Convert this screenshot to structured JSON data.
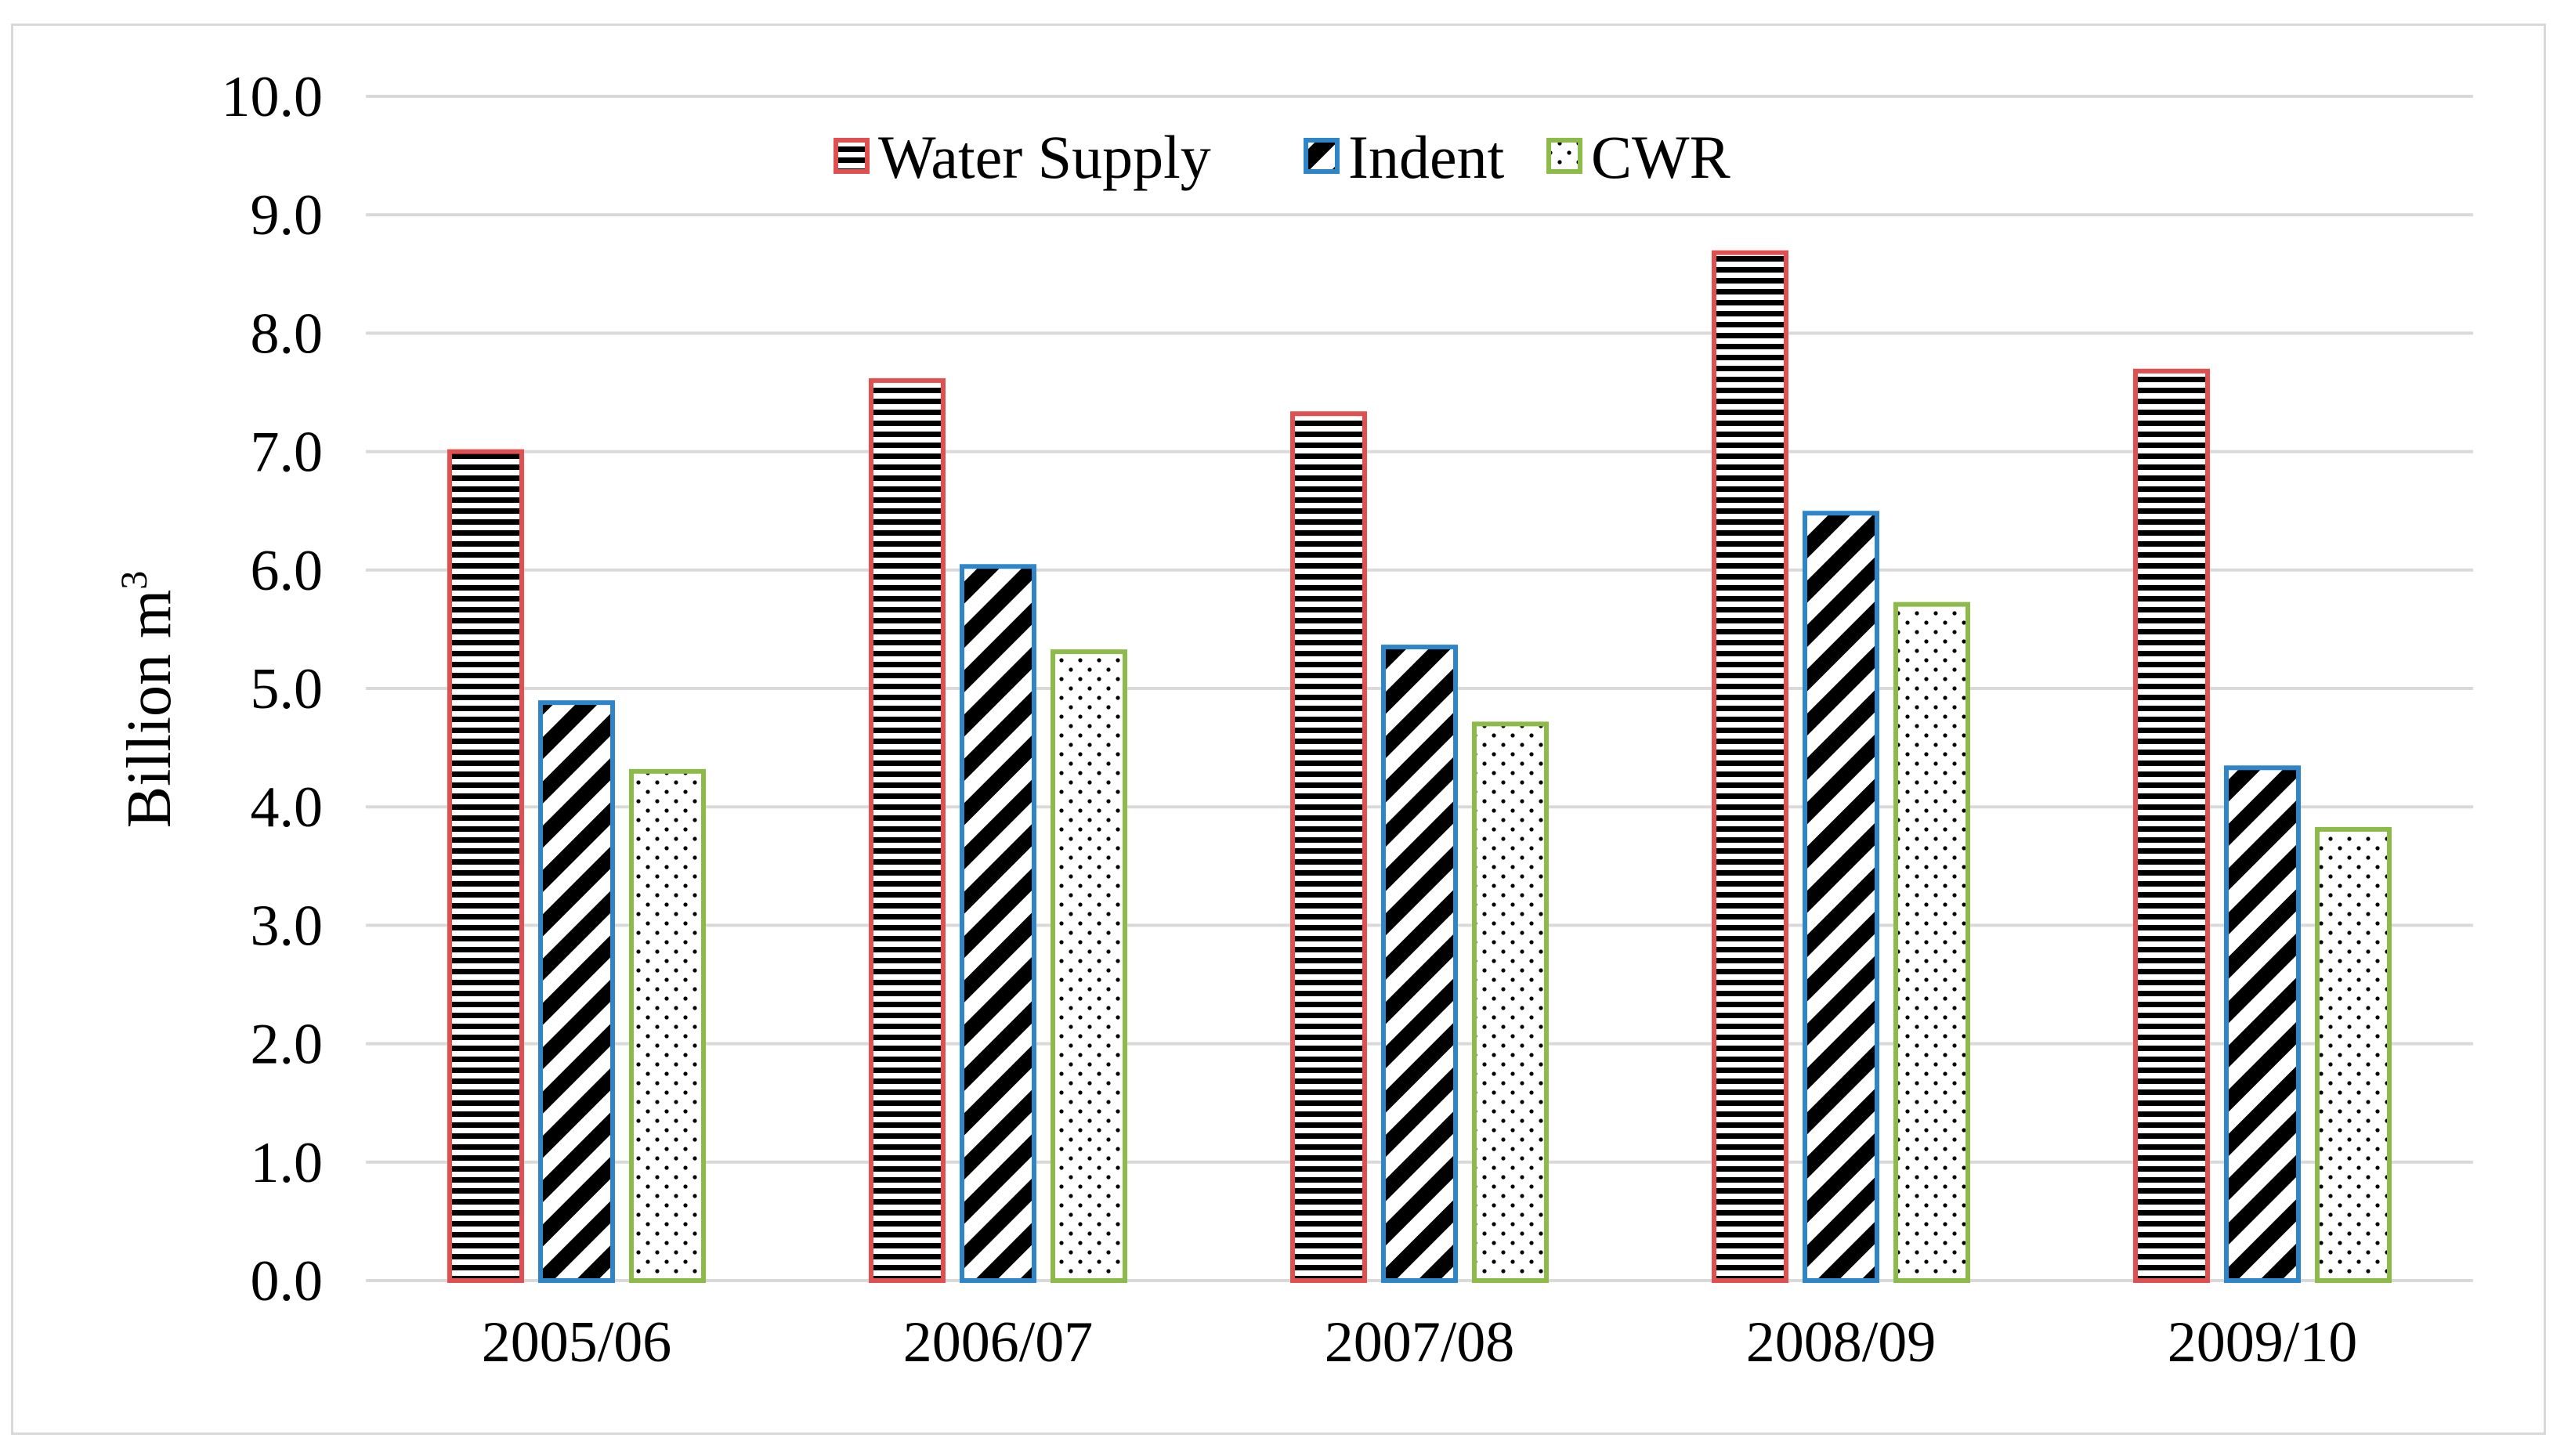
{
  "chart_data": {
    "type": "bar",
    "title": "",
    "xlabel": "",
    "ylabel": "Billion m",
    "ylabel_superscript": "3",
    "ylim": [
      0,
      10
    ],
    "yticks": [
      "0.0",
      "1.0",
      "2.0",
      "3.0",
      "4.0",
      "5.0",
      "6.0",
      "7.0",
      "8.0",
      "9.0",
      "10.0"
    ],
    "grid": true,
    "legend_position": "top-center",
    "categories": [
      "2005/06",
      "2006/07",
      "2007/08",
      "2008/09",
      "2009/10"
    ],
    "series": [
      {
        "name": "Water Supply",
        "values": [
          7.0,
          7.6,
          7.32,
          8.68,
          7.68
        ],
        "color": "#e05050",
        "pattern": "horizontal-lines"
      },
      {
        "name": "Indent",
        "values": [
          4.88,
          6.03,
          5.35,
          6.48,
          4.33
        ],
        "color": "#2e86c8",
        "pattern": "diagonal-stripes"
      },
      {
        "name": "CWR",
        "values": [
          4.3,
          5.31,
          4.7,
          5.71,
          3.81
        ],
        "color": "#8dbb4a",
        "pattern": "dots"
      }
    ]
  }
}
